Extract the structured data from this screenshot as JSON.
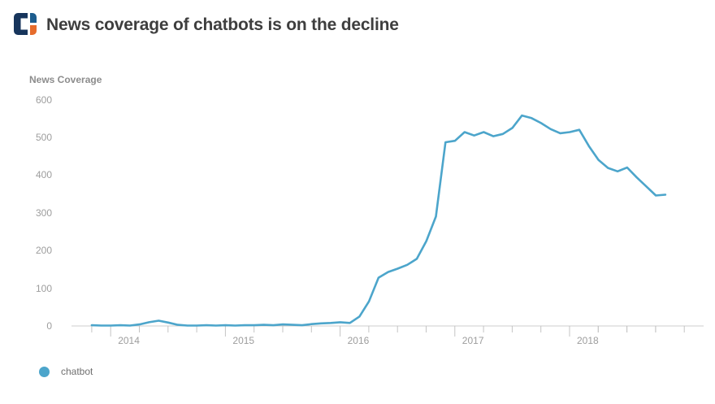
{
  "header": {
    "title": "News coverage of chatbots is on the decline"
  },
  "legend": {
    "label": "chatbot"
  },
  "colors": {
    "line": "#4CA5CB",
    "axis": "#cccccc",
    "tick": "#c4c4c4",
    "tick_label": "#9d9d9d",
    "title_text": "#3e3e3e",
    "axis_title_text": "#8c8c8c",
    "legend_text": "#6f6f6f",
    "logo_navy": "#17355c",
    "logo_blue": "#1d5d8e",
    "logo_orange": "#e66c2c"
  },
  "chart_data": {
    "type": "line",
    "title": "News coverage of chatbots is on the decline",
    "xlabel": "",
    "ylabel": "News Coverage",
    "y_ticks": [
      0,
      100,
      200,
      300,
      400,
      500,
      600
    ],
    "ylim": [
      0,
      620
    ],
    "x_year_ticks": [
      "2014",
      "2015",
      "2016",
      "2017",
      "2018"
    ],
    "x_minor_ticks_per_year": 4,
    "grid": false,
    "legend_position": "bottom-left",
    "series": [
      {
        "name": "chatbot",
        "start_month": "2013-11",
        "frequency": "monthly",
        "values": [
          2,
          1,
          1,
          2,
          1,
          4,
          10,
          14,
          9,
          3,
          1,
          1,
          2,
          1,
          2,
          1,
          2,
          2,
          3,
          2,
          4,
          3,
          2,
          5,
          7,
          8,
          10,
          8,
          25,
          65,
          128,
          143,
          152,
          162,
          178,
          225,
          290,
          487,
          491,
          514,
          505,
          514,
          503,
          509,
          525,
          558,
          551,
          538,
          522,
          511,
          514,
          520,
          477,
          440,
          419,
          410,
          420,
          394,
          370,
          346,
          348
        ]
      }
    ]
  }
}
